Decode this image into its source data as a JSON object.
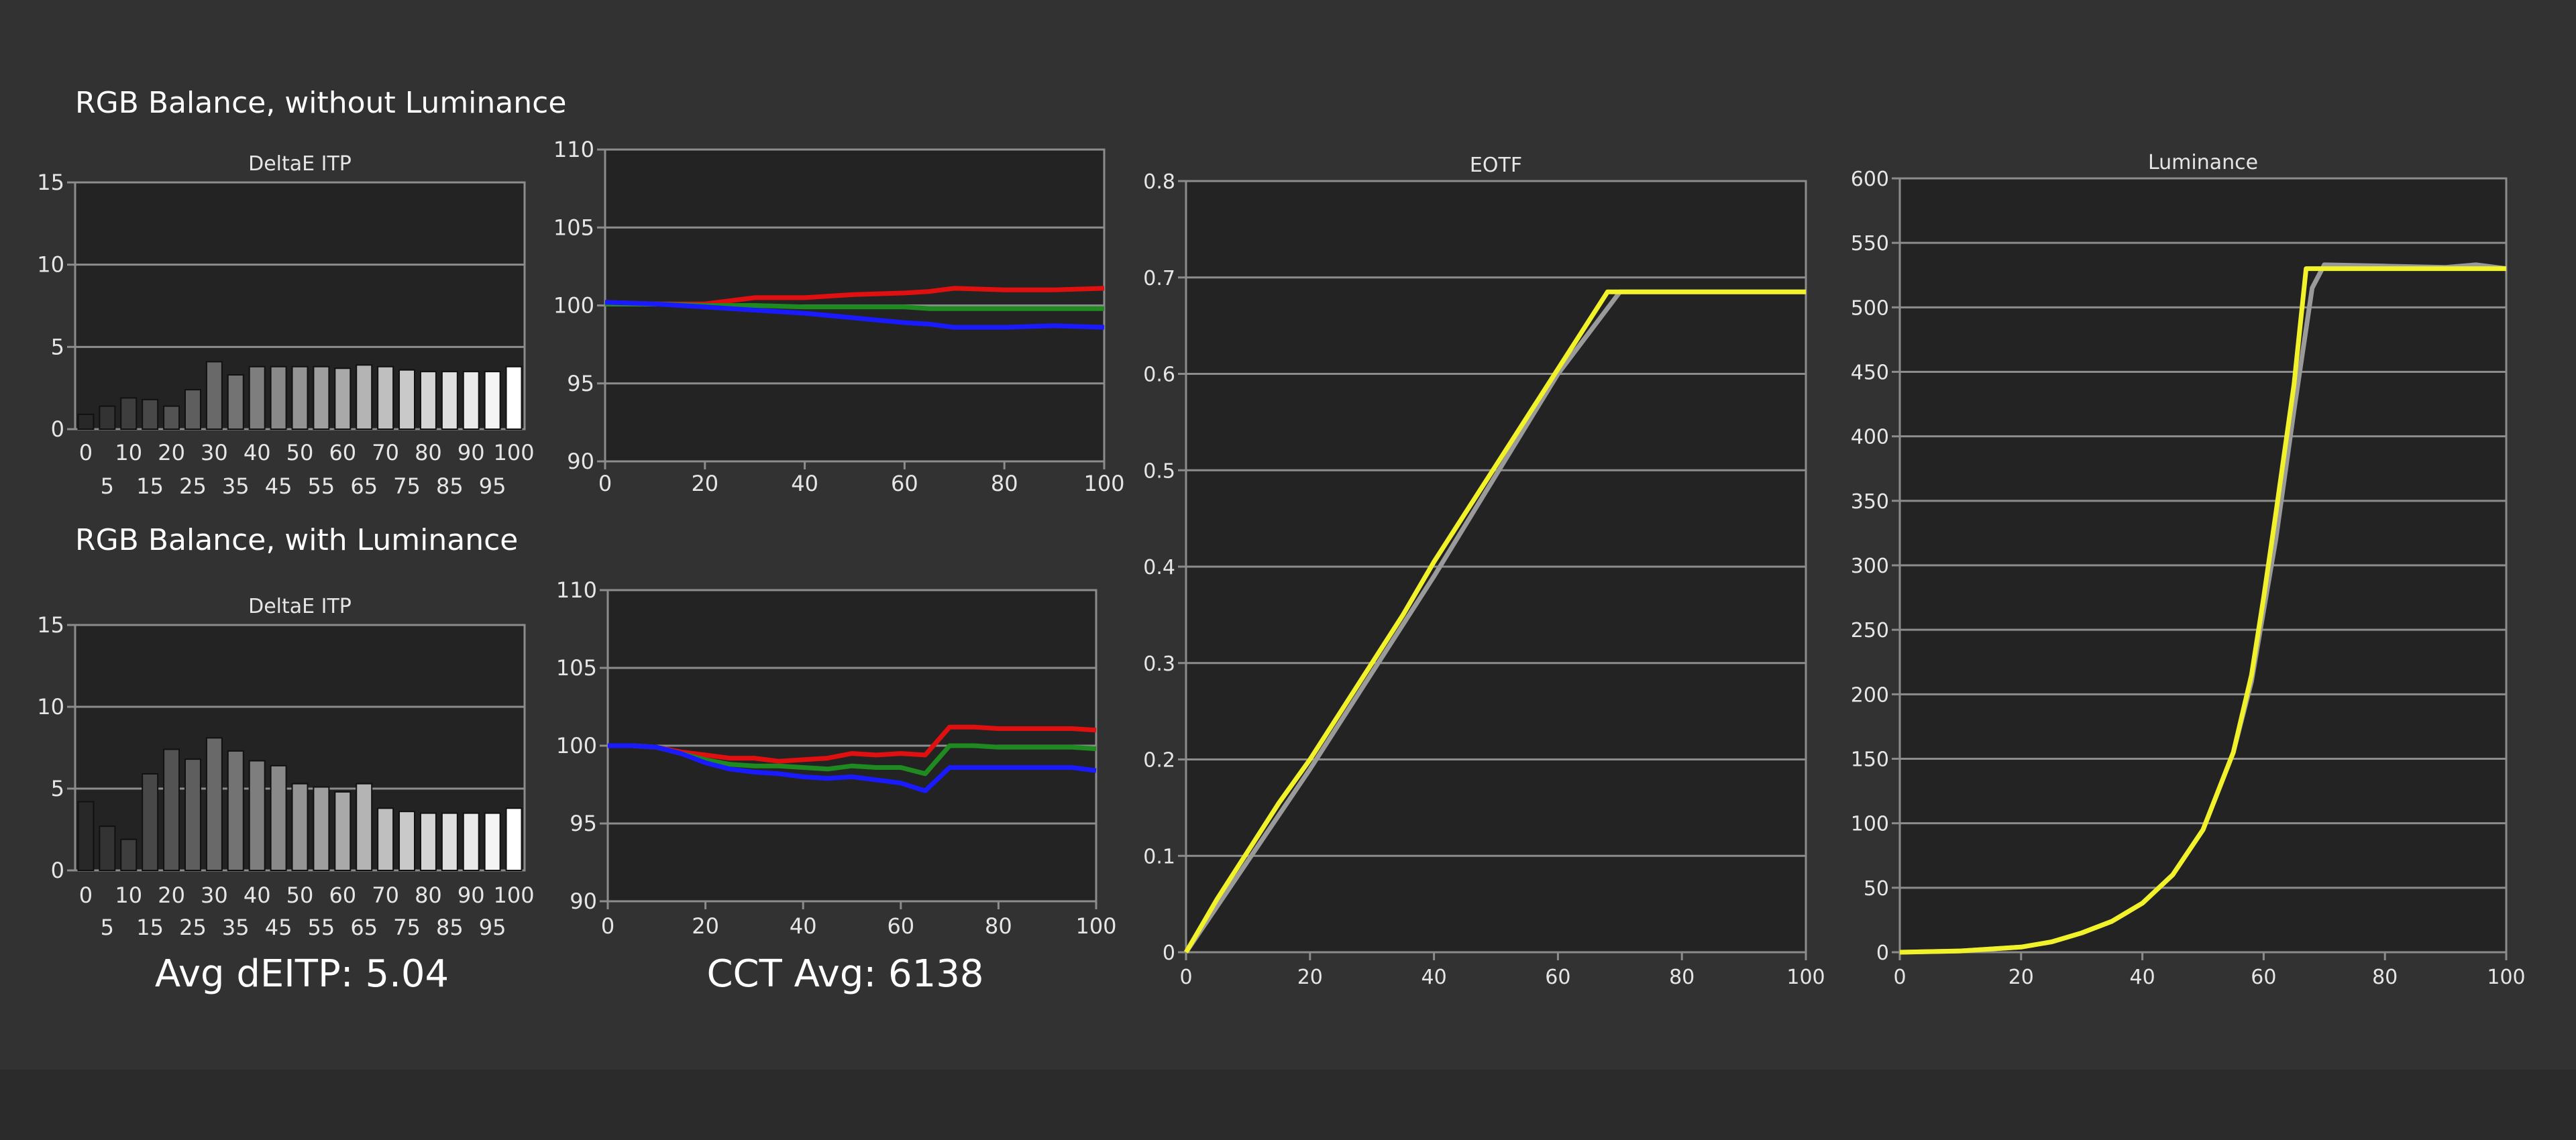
{
  "sections": {
    "without_luminance_title": "RGB Balance, without Luminance",
    "with_luminance_title": "RGB Balance, with Luminance"
  },
  "stats": {
    "avg_deitp": "Avg dEITP: 5.04",
    "cct_avg": "CCT Avg: 6138"
  },
  "colors": {
    "background": "#323232",
    "plot_bg": "#232323",
    "grid": "#8c8c8c",
    "red": "#e01010",
    "green": "#1f8a1f",
    "blue": "#1a1aff",
    "yellow": "#f2f22a",
    "gray_target": "#9a9a9a"
  },
  "chart_data": [
    {
      "id": "deltae-top",
      "type": "bar",
      "title": "DeltaE ITP",
      "categories": [
        "0",
        "5",
        "10",
        "15",
        "20",
        "25",
        "30",
        "35",
        "40",
        "45",
        "50",
        "55",
        "60",
        "65",
        "70",
        "75",
        "80",
        "85",
        "90",
        "95",
        "100"
      ],
      "values": [
        0.9,
        1.4,
        1.9,
        1.8,
        1.4,
        2.4,
        4.1,
        3.3,
        3.8,
        3.8,
        3.8,
        3.8,
        3.7,
        3.9,
        3.8,
        3.6,
        3.5,
        3.5,
        3.5,
        3.5,
        3.8
      ],
      "xlabel": "",
      "ylabel": "",
      "ylim": [
        0,
        15
      ],
      "yticks": [
        0,
        5,
        10,
        15
      ],
      "xticks_row1": [
        "0",
        "10",
        "20",
        "30",
        "40",
        "50",
        "60",
        "70",
        "80",
        "90",
        "100"
      ],
      "xticks_row2": [
        "5",
        "15",
        "25",
        "35",
        "45",
        "55",
        "65",
        "75",
        "85",
        "95"
      ],
      "grid": true
    },
    {
      "id": "rgb-top",
      "type": "line",
      "title": "",
      "x": [
        0,
        10,
        20,
        30,
        40,
        50,
        60,
        65,
        70,
        80,
        90,
        100
      ],
      "series": [
        {
          "color_key": "red",
          "values": [
            100.2,
            100.1,
            100.1,
            100.5,
            100.5,
            100.7,
            100.8,
            100.9,
            101.1,
            101.0,
            101.0,
            101.1
          ]
        },
        {
          "color_key": "green",
          "values": [
            100.1,
            100.1,
            100.0,
            100.0,
            99.9,
            99.9,
            99.9,
            99.8,
            99.8,
            99.8,
            99.8,
            99.8
          ]
        },
        {
          "color_key": "blue",
          "values": [
            100.2,
            100.1,
            99.9,
            99.7,
            99.5,
            99.2,
            98.9,
            98.8,
            98.6,
            98.6,
            98.7,
            98.6
          ]
        }
      ],
      "xlabel": "",
      "ylabel": "",
      "xlim": [
        0,
        100
      ],
      "ylim": [
        90,
        110
      ],
      "xticks": [
        0,
        20,
        40,
        60,
        80,
        100
      ],
      "yticks": [
        90,
        95,
        100,
        105,
        110
      ],
      "grid": true
    },
    {
      "id": "deltae-bottom",
      "type": "bar",
      "title": "DeltaE ITP",
      "categories": [
        "0",
        "5",
        "10",
        "15",
        "20",
        "25",
        "30",
        "35",
        "40",
        "45",
        "50",
        "55",
        "60",
        "65",
        "70",
        "75",
        "80",
        "85",
        "90",
        "95",
        "100"
      ],
      "values": [
        4.2,
        2.7,
        1.9,
        5.9,
        7.4,
        6.8,
        8.1,
        7.3,
        6.7,
        6.4,
        5.3,
        5.1,
        4.8,
        5.3,
        3.8,
        3.6,
        3.5,
        3.5,
        3.5,
        3.5,
        3.8
      ],
      "xlabel": "",
      "ylabel": "",
      "ylim": [
        0,
        15
      ],
      "yticks": [
        0,
        5,
        10,
        15
      ],
      "xticks_row1": [
        "0",
        "10",
        "20",
        "30",
        "40",
        "50",
        "60",
        "70",
        "80",
        "90",
        "100"
      ],
      "xticks_row2": [
        "5",
        "15",
        "25",
        "35",
        "45",
        "55",
        "65",
        "75",
        "85",
        "95"
      ],
      "grid": true
    },
    {
      "id": "rgb-bottom",
      "type": "line",
      "title": "",
      "x": [
        0,
        5,
        10,
        15,
        20,
        25,
        30,
        35,
        40,
        45,
        50,
        55,
        60,
        65,
        70,
        75,
        80,
        85,
        90,
        95,
        100
      ],
      "series": [
        {
          "color_key": "red",
          "values": [
            100.0,
            100.0,
            99.9,
            99.6,
            99.4,
            99.2,
            99.2,
            99.0,
            99.1,
            99.2,
            99.5,
            99.4,
            99.5,
            99.4,
            101.2,
            101.2,
            101.1,
            101.1,
            101.1,
            101.1,
            101.0
          ]
        },
        {
          "color_key": "green",
          "values": [
            100.0,
            100.0,
            99.9,
            99.5,
            99.1,
            98.8,
            98.7,
            98.7,
            98.6,
            98.5,
            98.7,
            98.6,
            98.6,
            98.2,
            100.0,
            100.0,
            99.9,
            99.9,
            99.9,
            99.9,
            99.8
          ]
        },
        {
          "color_key": "blue",
          "values": [
            100.0,
            100.0,
            99.9,
            99.5,
            98.9,
            98.5,
            98.3,
            98.2,
            98.0,
            97.9,
            98.0,
            97.8,
            97.6,
            97.1,
            98.6,
            98.6,
            98.6,
            98.6,
            98.6,
            98.6,
            98.4
          ]
        }
      ],
      "xlabel": "",
      "ylabel": "",
      "xlim": [
        0,
        100
      ],
      "ylim": [
        90,
        110
      ],
      "xticks": [
        0,
        20,
        40,
        60,
        80,
        100
      ],
      "yticks": [
        90,
        95,
        100,
        105,
        110
      ],
      "grid": true
    },
    {
      "id": "eotf",
      "type": "line",
      "title": "EOTF",
      "series": [
        {
          "color_key": "gray_target",
          "x": [
            0,
            10,
            20,
            30,
            40,
            50,
            60,
            70,
            100
          ],
          "values": [
            0.0,
            0.095,
            0.19,
            0.29,
            0.39,
            0.495,
            0.6,
            0.685,
            0.685
          ]
        },
        {
          "color_key": "yellow",
          "x": [
            0,
            5,
            10,
            15,
            20,
            25,
            30,
            35,
            40,
            45,
            50,
            55,
            60,
            65,
            68,
            70,
            100
          ],
          "values": [
            0.0,
            0.055,
            0.105,
            0.155,
            0.2,
            0.25,
            0.3,
            0.35,
            0.405,
            0.455,
            0.505,
            0.555,
            0.605,
            0.655,
            0.685,
            0.685,
            0.685
          ]
        }
      ],
      "xlabel": "",
      "ylabel": "",
      "xlim": [
        0,
        100
      ],
      "ylim": [
        0,
        0.8
      ],
      "xticks": [
        0,
        20,
        40,
        60,
        80,
        100
      ],
      "yticks": [
        0,
        0.1,
        0.2,
        0.3,
        0.4,
        0.5,
        0.6,
        0.7,
        0.8
      ],
      "grid": true
    },
    {
      "id": "luminance",
      "type": "line",
      "title": "Luminance",
      "series": [
        {
          "color_key": "gray_target",
          "x": [
            0,
            10,
            20,
            25,
            30,
            35,
            40,
            45,
            50,
            55,
            58,
            60,
            62,
            65,
            68,
            70,
            80,
            90,
            95,
            100
          ],
          "values": [
            0,
            1,
            4,
            8,
            15,
            24,
            38,
            60,
            95,
            155,
            210,
            265,
            320,
            420,
            515,
            533,
            532,
            531,
            533,
            530
          ]
        },
        {
          "color_key": "yellow",
          "x": [
            0,
            10,
            20,
            25,
            30,
            35,
            40,
            45,
            50,
            55,
            58,
            60,
            62,
            65,
            67,
            68,
            70,
            80,
            90,
            100
          ],
          "values": [
            0,
            1,
            4,
            8,
            15,
            24,
            38,
            60,
            95,
            155,
            215,
            275,
            340,
            440,
            530,
            530,
            530,
            530,
            530,
            530
          ]
        }
      ],
      "xlabel": "",
      "ylabel": "",
      "xlim": [
        0,
        100
      ],
      "ylim": [
        0,
        600
      ],
      "xticks": [
        0,
        20,
        40,
        60,
        80,
        100
      ],
      "yticks": [
        0,
        50,
        100,
        150,
        200,
        250,
        300,
        350,
        400,
        450,
        500,
        550,
        600
      ],
      "grid": true
    }
  ]
}
